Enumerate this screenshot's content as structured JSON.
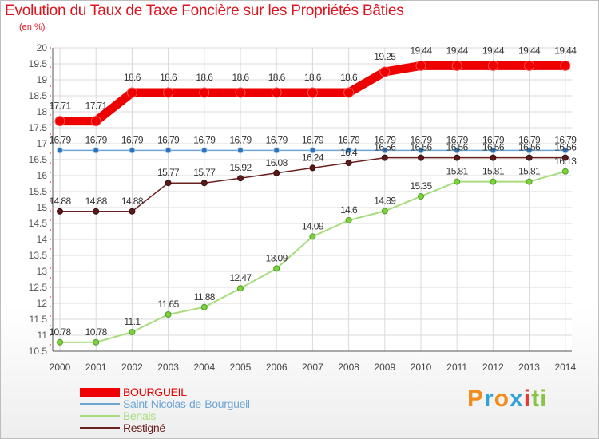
{
  "header": {
    "title": "Evolution du Taux de Taxe Foncière sur les Propriétés Bâties",
    "unit": "(en %)"
  },
  "brand": {
    "letters": [
      "P",
      "r",
      "o",
      "x",
      "i",
      "t",
      "i"
    ],
    "colors": [
      "#f28c1e",
      "#2fa0d8",
      "#f28c1e",
      "#2fa0d8",
      "#e53935",
      "#8bc34a",
      "#8bc34a"
    ]
  },
  "chart_data": {
    "type": "line",
    "title": "Evolution du Taux de Taxe Foncière sur les Propriétés Bâties",
    "ylabel": "(en %)",
    "xlabel": "",
    "ylim": [
      10.5,
      20
    ],
    "grid": true,
    "legend": "bottom-left",
    "categories": [
      "2000",
      "2001",
      "2002",
      "2003",
      "2004",
      "2005",
      "2006",
      "2007",
      "2008",
      "2009",
      "2010",
      "2011",
      "2012",
      "2013",
      "2014"
    ],
    "yticks": [
      "10.5",
      "11",
      "11.5",
      "12",
      "12.5",
      "13",
      "13.5",
      "14",
      "14.5",
      "15",
      "15.5",
      "16",
      "16.5",
      "17",
      "17.5",
      "18",
      "18.5",
      "19",
      "19.5",
      "20"
    ],
    "series": [
      {
        "name": "BOURGUEIL",
        "color": "#ee0000",
        "labels": [
          "17.71",
          "17.71",
          "18.6",
          "18.6",
          "18.6",
          "18.6",
          "18.6",
          "18.6",
          "18.6",
          "19.25",
          "19.44",
          "19.44",
          "19.44",
          "19.44",
          "19.44"
        ],
        "values": [
          17.71,
          17.71,
          18.6,
          18.6,
          18.6,
          18.6,
          18.6,
          18.6,
          18.6,
          19.25,
          19.44,
          19.44,
          19.44,
          19.44,
          19.44
        ]
      },
      {
        "name": "Saint-Nicolas-de-Bourgueil",
        "color": "#6ea6d6",
        "labels": [
          "16.79",
          "16.79",
          "16.79",
          "16.79",
          "16.79",
          "16.79",
          "16.79",
          "16.79",
          "16.79",
          "16.79",
          "16.79",
          "16.79",
          "16.79",
          "16.79",
          "16.79"
        ],
        "values": [
          16.79,
          16.79,
          16.79,
          16.79,
          16.79,
          16.79,
          16.79,
          16.79,
          16.79,
          16.79,
          16.79,
          16.79,
          16.79,
          16.79,
          16.79
        ]
      },
      {
        "name": "Benais",
        "color": "#a6dc7e",
        "labels": [
          "10.78",
          "10.78",
          "11.1",
          "11.65",
          "11.88",
          "12.47",
          "13.09",
          "14.09",
          "14.6",
          "14.89",
          "15.35",
          "15.81",
          "15.81",
          "15.81",
          "16.13"
        ],
        "values": [
          10.78,
          10.78,
          11.1,
          11.65,
          11.88,
          12.47,
          13.09,
          14.09,
          14.6,
          14.89,
          15.35,
          15.81,
          15.81,
          15.81,
          16.13
        ]
      },
      {
        "name": "Restigné",
        "color": "#6b2020",
        "labels": [
          "14.88",
          "14.88",
          "14.88",
          "15.77",
          "15.77",
          "15.92",
          "16.08",
          "16.24",
          "16.4",
          "16.56",
          "16.56",
          "16.56",
          "16.56",
          "16.56",
          "16.56"
        ],
        "values": [
          14.88,
          14.88,
          14.88,
          15.77,
          15.77,
          15.92,
          16.08,
          16.24,
          16.4,
          16.56,
          16.56,
          16.56,
          16.56,
          16.56,
          16.56
        ]
      }
    ]
  }
}
